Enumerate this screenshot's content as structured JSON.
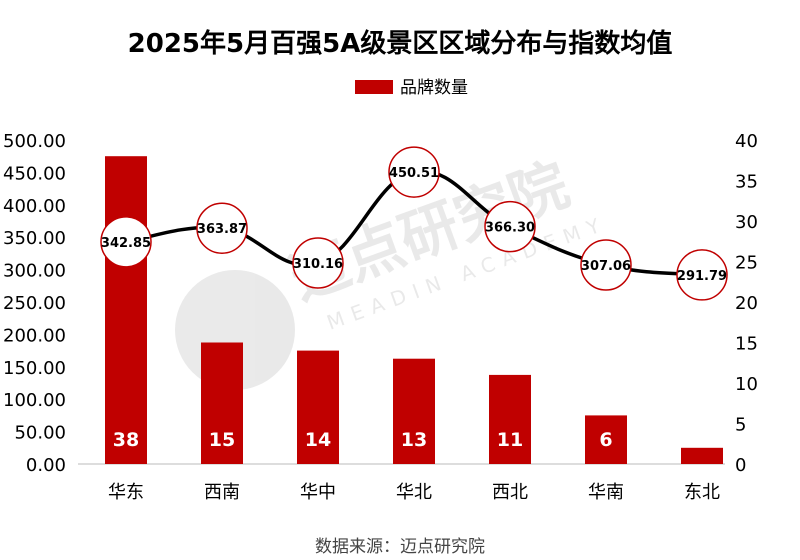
{
  "chart_data": {
    "type": "bar+line",
    "title": "2025年5月百强5A级景区区域分布与指数均值",
    "categories": [
      "华东",
      "西南",
      "华中",
      "华北",
      "西北",
      "华南",
      "东北"
    ],
    "series": [
      {
        "name": "品牌数量",
        "type": "bar",
        "axis": "right",
        "values": [
          38,
          15,
          14,
          13,
          11,
          6,
          2
        ],
        "color": "#c00000"
      },
      {
        "type": "line",
        "axis": "left",
        "values": [
          342.85,
          363.87,
          310.16,
          450.51,
          366.3,
          307.06,
          291.79
        ],
        "color": "#000000",
        "marker_color": "#c00000"
      }
    ],
    "left_axis": {
      "range": [
        0,
        500
      ],
      "ticks": [
        "0.00",
        "50.00",
        "100.00",
        "150.00",
        "200.00",
        "250.00",
        "300.00",
        "350.00",
        "400.00",
        "450.00",
        "500.00"
      ]
    },
    "right_axis": {
      "range": [
        0,
        40
      ],
      "ticks": [
        "0",
        "5",
        "10",
        "15",
        "20",
        "25",
        "30",
        "35",
        "40"
      ]
    },
    "legend": "top-center",
    "grid": false
  },
  "source": "数据来源：迈点研究院",
  "watermark": {
    "text": "迈点研究院",
    "subtext": "MEADIN ACADEMY"
  }
}
